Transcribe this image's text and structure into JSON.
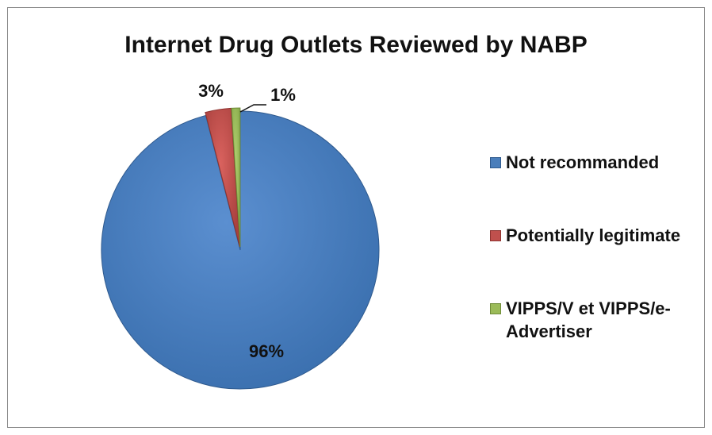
{
  "chart_data": {
    "type": "pie",
    "title": "Internet Drug Outlets Reviewed by NABP",
    "slices": [
      {
        "label": "Not recommanded",
        "value": 96,
        "display": "96%",
        "color": "#4a7ebb"
      },
      {
        "label": "Potentially legitimate",
        "value": 3,
        "display": "3%",
        "color": "#c0504d"
      },
      {
        "label": "VIPPS/V et VIPPS/e-Advertiser",
        "value": 1,
        "display": "1%",
        "color": "#9bbb59"
      }
    ],
    "legend": {
      "placement": "right",
      "entries": [
        "Not recommanded",
        "Potentially legitimate",
        "VIPPS/V et VIPPS/e-Advertiser"
      ]
    }
  }
}
